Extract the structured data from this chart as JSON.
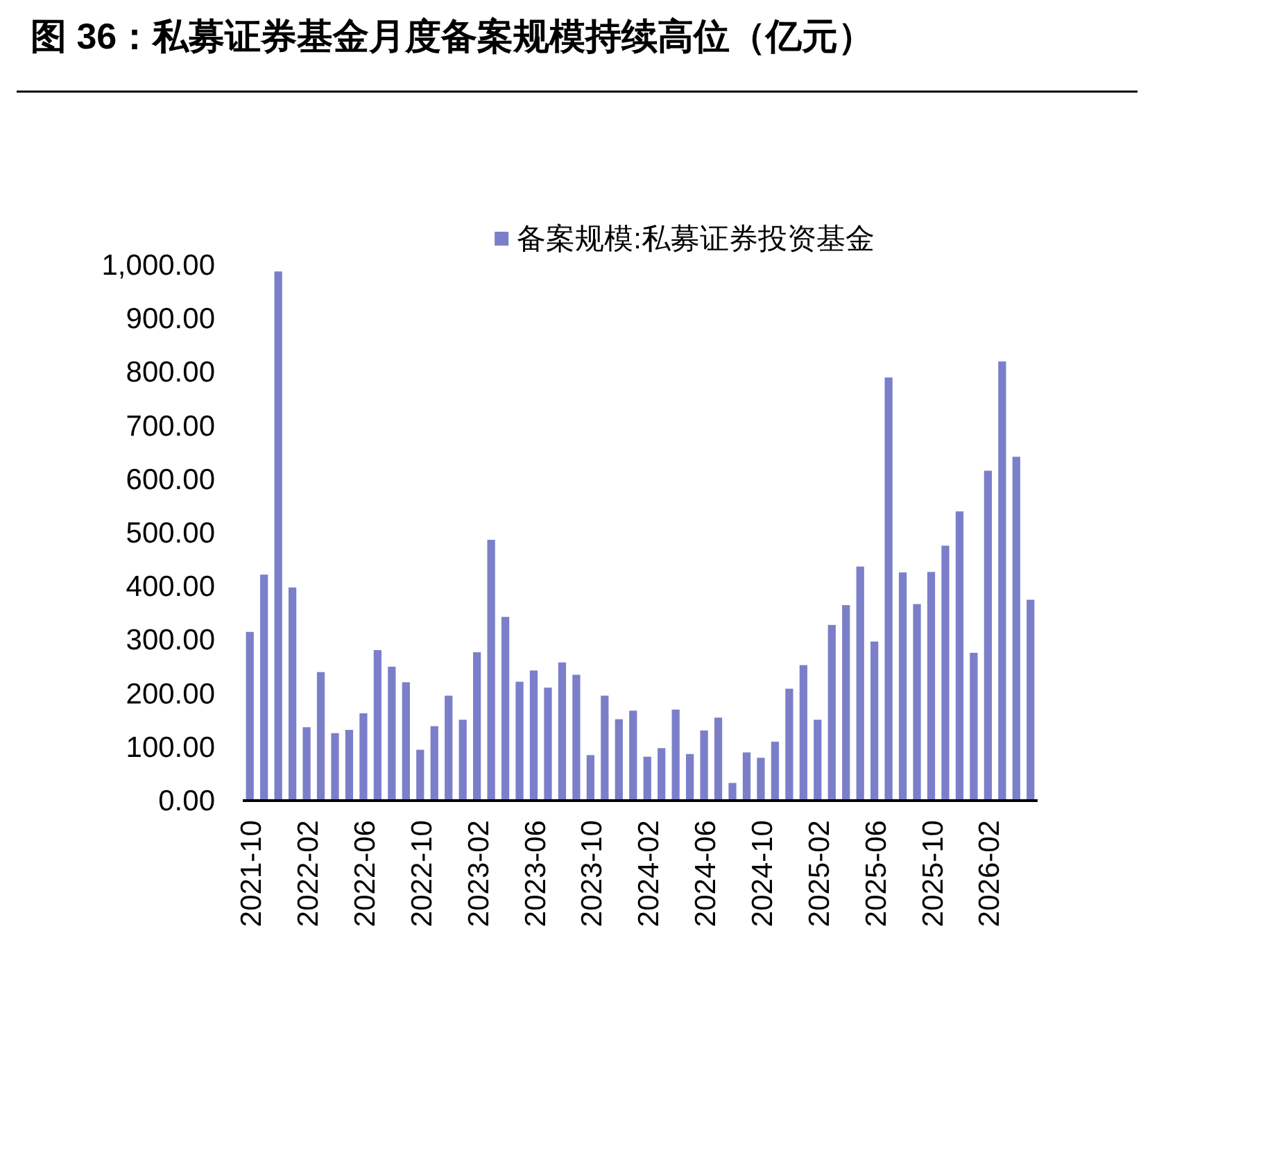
{
  "chart_data": {
    "type": "bar",
    "title": "图 36：私募证券基金月度备案规模持续高位（亿元）",
    "categories": [
      "2021-10",
      null,
      null,
      null,
      "2022-02",
      null,
      null,
      null,
      "2022-06",
      null,
      null,
      null,
      "2022-10",
      null,
      null,
      null,
      "2023-02",
      null,
      null,
      null,
      "2023-06",
      null,
      null,
      null,
      "2023-10",
      null,
      null,
      null,
      "2024-02",
      null,
      null,
      null,
      "2024-06",
      null,
      null,
      null,
      "2024-10",
      null,
      null,
      null,
      "2025-02",
      null,
      null,
      null,
      "2025-06",
      null,
      null,
      null,
      "2025-10",
      null,
      null,
      null,
      "2026-02",
      null,
      null,
      null
    ],
    "series": [
      {
        "name": "备案规模:私募证券投资基金",
        "color": "#7b7fc9",
        "values": [
          315,
          422,
          988,
          398,
          137,
          240,
          126,
          132,
          163,
          281,
          250,
          221,
          95,
          139,
          196,
          151,
          277,
          487,
          343,
          222,
          243,
          211,
          258,
          235,
          85,
          196,
          152,
          168,
          82,
          98,
          170,
          87,
          131,
          155,
          33,
          90,
          80,
          110,
          209,
          253,
          151,
          328,
          365,
          437,
          297,
          790,
          426,
          367,
          427,
          476,
          540,
          276,
          616,
          820,
          642,
          375
        ]
      }
    ],
    "ylim": [
      0,
      1000
    ],
    "yticks": [
      {
        "value": 0,
        "label": "0.00"
      },
      {
        "value": 100,
        "label": "100.00"
      },
      {
        "value": 200,
        "label": "200.00"
      },
      {
        "value": 300,
        "label": "300.00"
      },
      {
        "value": 400,
        "label": "400.00"
      },
      {
        "value": 500,
        "label": "500.00"
      },
      {
        "value": 600,
        "label": "600.00"
      },
      {
        "value": 700,
        "label": "700.00"
      },
      {
        "value": 800,
        "label": "800.00"
      },
      {
        "value": 900,
        "label": "900.00"
      },
      {
        "value": 1000,
        "label": "1,000.00"
      }
    ],
    "legend": "top",
    "grid": false
  }
}
